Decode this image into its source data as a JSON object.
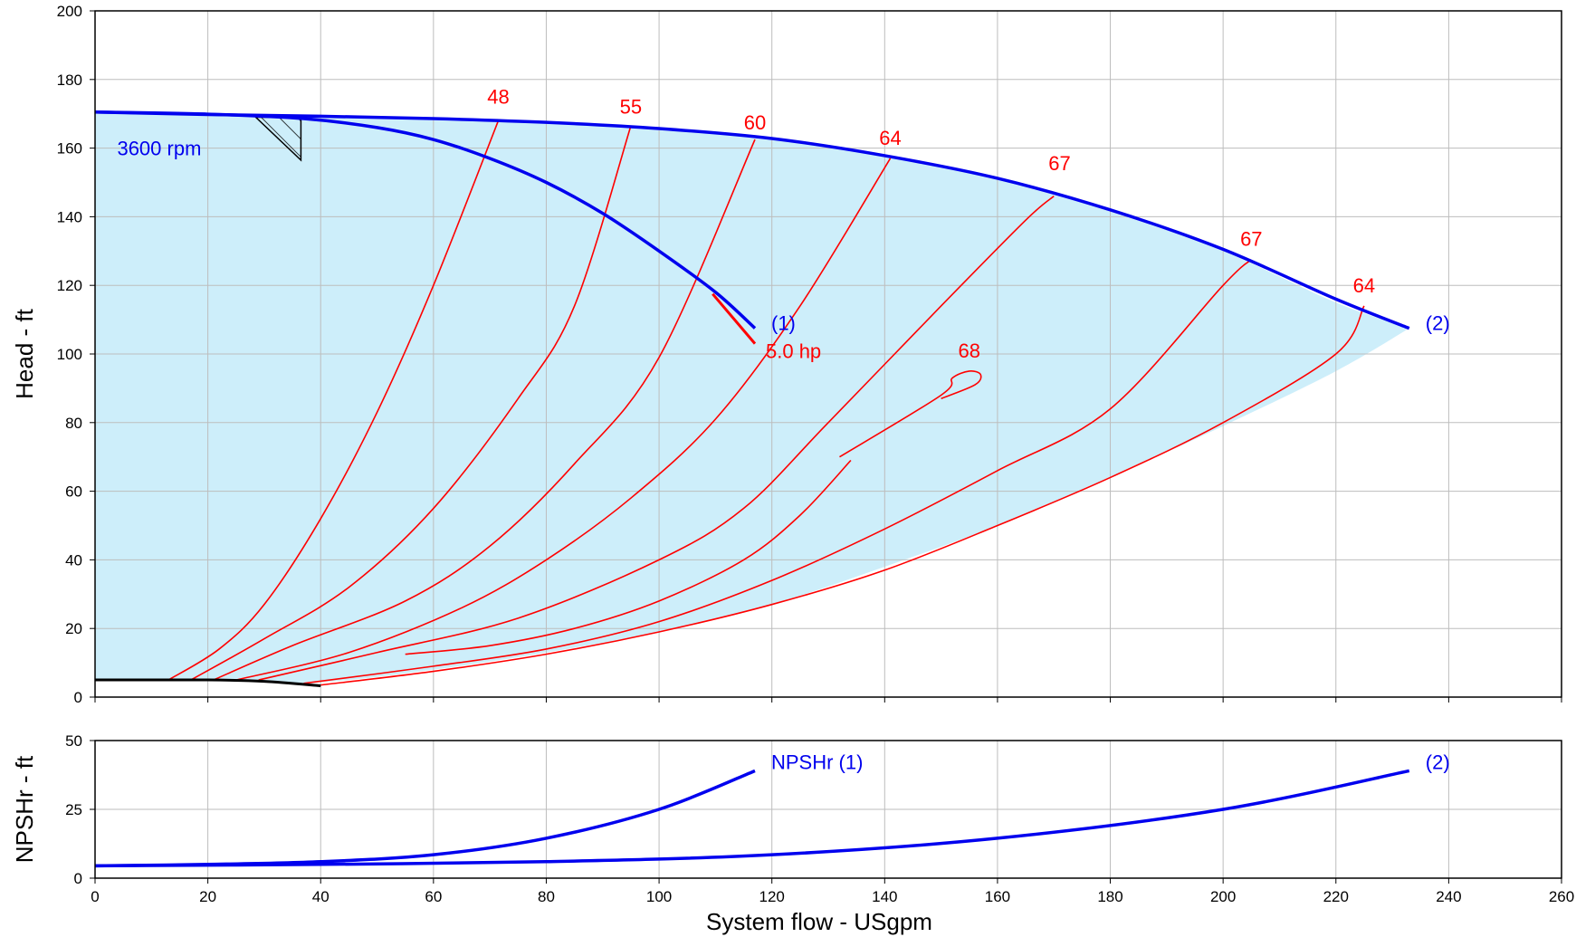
{
  "chart_data": [
    {
      "type": "line",
      "panel": "head",
      "xlabel": "System flow - USgpm",
      "ylabel": "Head - ft",
      "xlim": [
        0,
        260
      ],
      "ylim": [
        0,
        200
      ],
      "x_ticks": [
        "0",
        "20",
        "40",
        "60",
        "80",
        "100",
        "120",
        "140",
        "160",
        "180",
        "200",
        "220",
        "240",
        "260"
      ],
      "y_ticks": [
        "0",
        "20",
        "40",
        "60",
        "80",
        "100",
        "120",
        "140",
        "160",
        "180",
        "200"
      ],
      "grid": true,
      "colors": {
        "envelope_fill": "#cdeefa",
        "head_curve": "#0000ee",
        "efficiency": "#ff0000",
        "min_flow": "#000000"
      },
      "speed_label": "3600 rpm",
      "operating_envelope": {
        "upper": [
          [
            0,
            170.5
          ],
          [
            10,
            170
          ],
          [
            20,
            169.8
          ],
          [
            30,
            169.4
          ],
          [
            40,
            169.2
          ],
          [
            60,
            168.6
          ],
          [
            80,
            167.6
          ],
          [
            100,
            165.5
          ],
          [
            120,
            162.8
          ],
          [
            140,
            157.5
          ],
          [
            160,
            151
          ],
          [
            180,
            141.5
          ],
          [
            200,
            130
          ],
          [
            220,
            115
          ],
          [
            233,
            107.5
          ]
        ],
        "lower": [
          [
            0,
            5
          ],
          [
            20,
            4.8
          ],
          [
            40,
            4.4
          ],
          [
            60,
            8
          ],
          [
            80,
            13
          ],
          [
            100,
            19
          ],
          [
            120,
            27
          ],
          [
            140,
            38
          ],
          [
            160,
            50
          ],
          [
            180,
            64
          ],
          [
            200,
            79
          ],
          [
            220,
            95
          ],
          [
            233,
            107.5
          ]
        ]
      },
      "series": [
        {
          "name": "(1)",
          "points": [
            [
              0,
              170.5
            ],
            [
              20,
              169.9
            ],
            [
              37,
              168.6
            ],
            [
              50,
              166
            ],
            [
              60,
              162.5
            ],
            [
              70,
              157
            ],
            [
              80,
              150
            ],
            [
              90,
              141
            ],
            [
              100,
              130
            ],
            [
              110,
              118
            ],
            [
              117,
              107.5
            ]
          ]
        },
        {
          "name": "(2)",
          "points": [
            [
              0,
              170.5
            ],
            [
              20,
              169.8
            ],
            [
              40,
              169.3
            ],
            [
              60,
              168.6
            ],
            [
              80,
              167.5
            ],
            [
              100,
              165.7
            ],
            [
              120,
              162.8
            ],
            [
              140,
              157.8
            ],
            [
              160,
              151.2
            ],
            [
              180,
              142
            ],
            [
              200,
              130.5
            ],
            [
              220,
              116
            ],
            [
              233,
              107.5
            ]
          ]
        }
      ],
      "efficiency_curves": [
        {
          "label": "48",
          "label_point": [
            71.5,
            173
          ],
          "points": [
            [
              13,
              5
            ],
            [
              22,
              14
            ],
            [
              30,
              27
            ],
            [
              40,
              52
            ],
            [
              50,
              83
            ],
            [
              60,
              120
            ],
            [
              71.5,
              168
            ]
          ]
        },
        {
          "label": "55",
          "label_point": [
            95,
            170
          ],
          "points": [
            [
              17,
              5
            ],
            [
              30,
              17
            ],
            [
              45,
              32
            ],
            [
              60,
              55
            ],
            [
              75,
              87
            ],
            [
              85,
              114
            ],
            [
              95,
              166.5
            ]
          ]
        },
        {
          "label": "60",
          "label_point": [
            117,
            165.5
          ],
          "points": [
            [
              21,
              5
            ],
            [
              35,
              15
            ],
            [
              55,
              28
            ],
            [
              70,
              44
            ],
            [
              85,
              68
            ],
            [
              100,
              99
            ],
            [
              117,
              162.5
            ]
          ]
        },
        {
          "label": "64",
          "label_point": [
            141,
            161
          ],
          "points": [
            [
              25,
              5
            ],
            [
              45,
              13
            ],
            [
              65,
              26
            ],
            [
              80,
              40
            ],
            [
              95,
              58
            ],
            [
              110,
              81
            ],
            [
              125,
              114
            ],
            [
              141,
              157
            ]
          ]
        },
        {
          "label": "67",
          "label_point": [
            171,
            153.5
          ],
          "points": [
            [
              29,
              5
            ],
            [
              50,
              13
            ],
            [
              75,
              23
            ],
            [
              100,
              40
            ],
            [
              115,
              55
            ],
            [
              130,
              80
            ],
            [
              150,
              114
            ],
            [
              165,
              139
            ],
            [
              170,
              146
            ]
          ]
        },
        {
          "label": "68",
          "label_point": [
            155,
            99
          ],
          "points": [
            [
              55,
              12.5
            ],
            [
              70,
              15
            ],
            [
              85,
              20
            ],
            [
              100,
              28
            ],
            [
              115,
              40
            ],
            [
              125,
              53
            ],
            [
              134,
              69
            ]
          ]
        },
        {
          "label": "68",
          "points": [
            [
              132,
              70
            ],
            [
              150,
              88
            ],
            [
              152,
              93
            ],
            [
              155,
              95
            ],
            [
              157,
              94
            ],
            [
              156,
              91
            ],
            [
              150,
              87
            ]
          ]
        },
        {
          "label": "67",
          "label_point": [
            205,
            131.5
          ],
          "points": [
            [
              37,
              4
            ],
            [
              60,
              9
            ],
            [
              80,
              14
            ],
            [
              100,
              22
            ],
            [
              120,
              34
            ],
            [
              140,
              49
            ],
            [
              160,
              66
            ],
            [
              180,
              84
            ],
            [
              200,
              120
            ],
            [
              205,
              127.5
            ]
          ]
        },
        {
          "label": "64",
          "label_point": [
            225,
            118
          ],
          "points": [
            [
              40,
              3.5
            ],
            [
              60,
              7.5
            ],
            [
              80,
              12.5
            ],
            [
              100,
              19
            ],
            [
              120,
              27
            ],
            [
              140,
              37
            ],
            [
              160,
              50
            ],
            [
              180,
              64
            ],
            [
              200,
              80
            ],
            [
              220,
              100
            ],
            [
              225,
              114
            ]
          ]
        }
      ],
      "min_flow_curve": {
        "points": [
          [
            0,
            5
          ],
          [
            20,
            5
          ],
          [
            30,
            4.6
          ],
          [
            40,
            3.3
          ]
        ]
      },
      "power_marker": {
        "label": "5.0 hp",
        "points": [
          [
            109.5,
            117.5
          ],
          [
            117,
            103
          ]
        ]
      },
      "hatched_triangle": {
        "points": [
          [
            28.5,
            169
          ],
          [
            36.5,
            169
          ],
          [
            36.5,
            156.5
          ]
        ]
      },
      "annotations": [
        "3600 rpm",
        "(1)",
        "(2)",
        "5.0 hp"
      ]
    },
    {
      "type": "line",
      "panel": "npsh",
      "xlabel": "System flow - USgpm",
      "ylabel": "NPSHr - ft",
      "xlim": [
        0,
        260
      ],
      "ylim": [
        0,
        50
      ],
      "x_ticks": [
        "0",
        "20",
        "40",
        "60",
        "80",
        "100",
        "120",
        "140",
        "160",
        "180",
        "200",
        "220",
        "240",
        "260"
      ],
      "y_ticks": [
        "0",
        "25",
        "50"
      ],
      "grid": true,
      "series": [
        {
          "name": "NPSHr (1)",
          "points": [
            [
              0,
              4.5
            ],
            [
              20,
              5
            ],
            [
              40,
              6
            ],
            [
              60,
              8.5
            ],
            [
              80,
              14.5
            ],
            [
              100,
              25
            ],
            [
              117,
              39
            ]
          ]
        },
        {
          "name": "(2)",
          "points": [
            [
              0,
              4.5
            ],
            [
              40,
              5
            ],
            [
              80,
              6
            ],
            [
              120,
              8.5
            ],
            [
              160,
              14.5
            ],
            [
              200,
              25
            ],
            [
              233,
              39
            ]
          ]
        }
      ]
    }
  ]
}
